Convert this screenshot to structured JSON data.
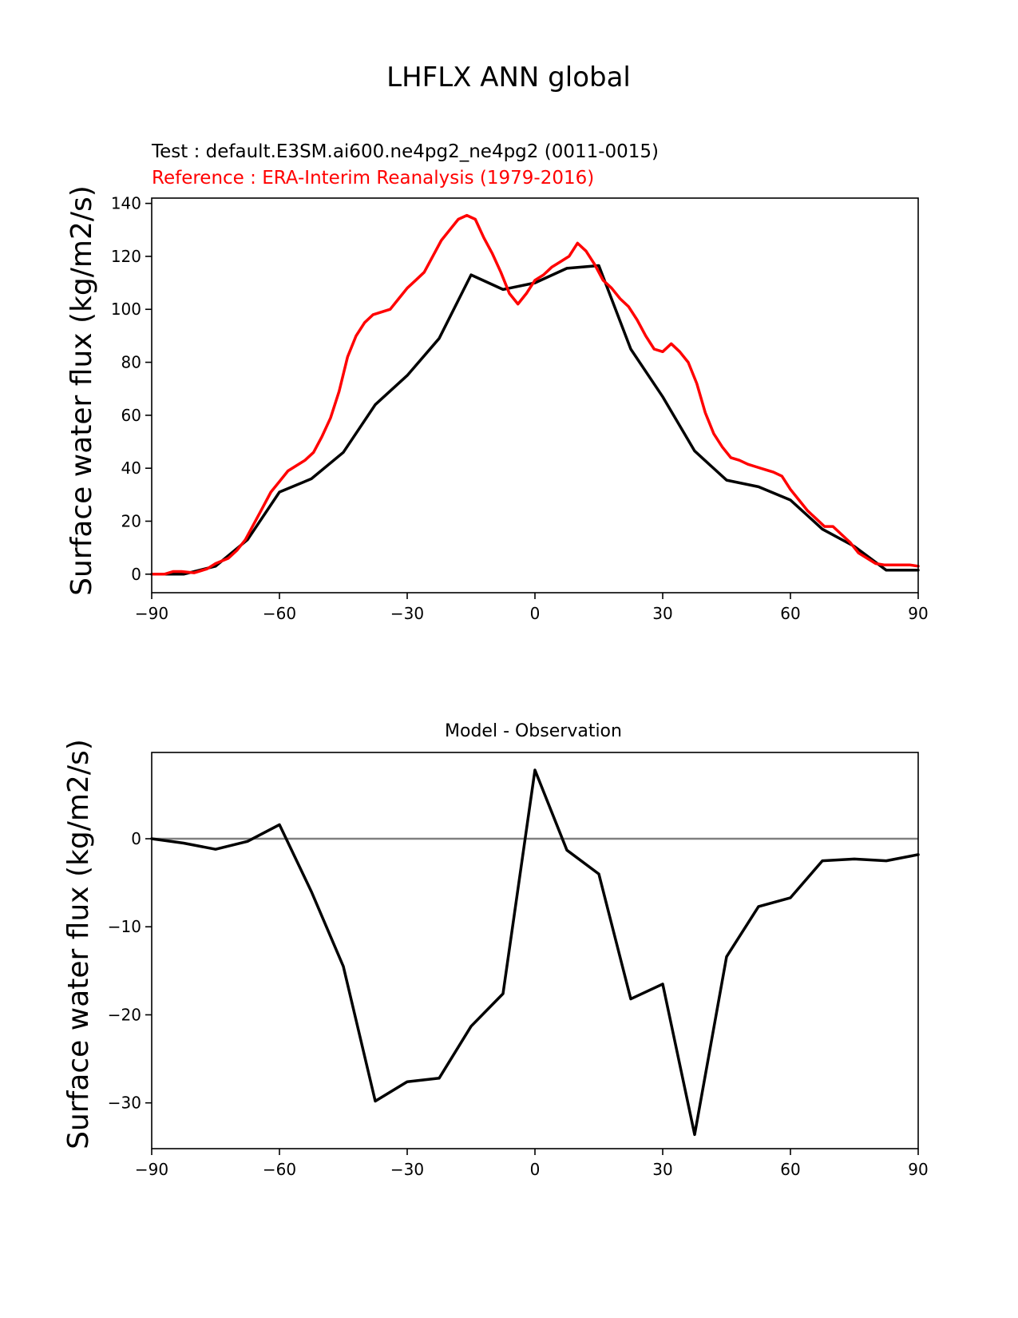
{
  "figure_title": "LHFLX ANN global",
  "chart_data": [
    {
      "type": "line",
      "name": "top",
      "test_label": "Test : default.E3SM.ai600.ne4pg2_ne4pg2 (0011-0015)",
      "reference_label": "Reference : ERA-Interim Reanalysis (1979-2016)",
      "xlabel": "",
      "ylabel": "Surface water flux (kg/m2/s)",
      "xlim": [
        -90,
        90
      ],
      "ylim": [
        -7,
        142
      ],
      "xticks": [
        -90,
        -60,
        -30,
        0,
        30,
        60,
        90
      ],
      "xtick_labels": [
        "−90",
        "−60",
        "−30",
        "0",
        "30",
        "60",
        "90"
      ],
      "yticks": [
        0,
        20,
        40,
        60,
        80,
        100,
        120,
        140
      ],
      "ytick_labels": [
        "0",
        "20",
        "40",
        "60",
        "80",
        "100",
        "120",
        "140"
      ],
      "series": [
        {
          "name": "Test",
          "color": "#000000",
          "x": [
            -90,
            -82.5,
            -75,
            -67.5,
            -60,
            -52.5,
            -45,
            -37.5,
            -30,
            -22.5,
            -15,
            -7.5,
            0,
            7.5,
            15,
            22.5,
            30,
            37.5,
            45,
            52.5,
            60,
            67.5,
            75,
            82.5,
            90
          ],
          "y": [
            0,
            0,
            3,
            13,
            31,
            36,
            46,
            64,
            75,
            89,
            113,
            107.5,
            110,
            115.5,
            116.5,
            85,
            67,
            46.5,
            35.5,
            33,
            28,
            17,
            10.5,
            1.5,
            1.5
          ]
        },
        {
          "name": "Reference",
          "color": "#ff0000",
          "x": [
            -90,
            -87,
            -85,
            -83,
            -80,
            -77,
            -75,
            -72,
            -70,
            -68,
            -66,
            -64,
            -62,
            -60,
            -58,
            -56,
            -54,
            -52,
            -50,
            -48,
            -46,
            -44,
            -42,
            -40,
            -38,
            -36,
            -34,
            -32,
            -30,
            -28,
            -26,
            -24,
            -22,
            -20,
            -18,
            -16,
            -14,
            -12,
            -10,
            -8,
            -6,
            -4,
            -2,
            0,
            2,
            4,
            6,
            8,
            10,
            12,
            14,
            16,
            18,
            20,
            22,
            24,
            26,
            28,
            30,
            32,
            34,
            36,
            38,
            40,
            42,
            44,
            46,
            48,
            50,
            52,
            54,
            56,
            58,
            60,
            62,
            64,
            66,
            68,
            70,
            72,
            74,
            76,
            78,
            80,
            82,
            84,
            86,
            88,
            90
          ],
          "y": [
            0,
            0,
            1,
            1,
            0.5,
            2,
            4,
            6,
            9,
            13,
            19,
            25,
            31,
            35,
            39,
            41,
            43,
            46,
            52,
            59,
            69,
            82,
            90,
            95,
            98,
            99,
            100,
            104,
            108,
            111,
            114,
            120,
            126,
            130,
            134,
            135.5,
            134,
            127,
            121,
            114,
            106,
            102,
            106,
            111,
            113,
            116,
            118,
            120,
            125,
            122,
            117,
            111,
            108,
            104,
            101,
            96,
            90,
            85,
            84,
            87,
            84,
            80,
            72,
            61,
            53,
            48,
            44,
            43,
            41.5,
            40.5,
            39.5,
            38.5,
            37,
            32,
            28,
            24,
            21,
            18,
            18,
            15,
            12,
            8,
            6,
            4,
            3.5,
            3.5,
            3.5,
            3.5,
            3
          ]
        }
      ]
    },
    {
      "type": "line",
      "name": "bottom",
      "title": "Model - Observation",
      "xlabel": "",
      "ylabel": "Surface water flux (kg/m2/s)",
      "xlim": [
        -90,
        90
      ],
      "ylim": [
        -35.2,
        9.8
      ],
      "xticks": [
        -90,
        -60,
        -30,
        0,
        30,
        60,
        90
      ],
      "xtick_labels": [
        "−90",
        "−60",
        "−30",
        "0",
        "30",
        "60",
        "90"
      ],
      "yticks": [
        0,
        -10,
        -20,
        -30
      ],
      "ytick_labels": [
        "0",
        "−10",
        "−20",
        "−30"
      ],
      "zero_line_color": "#808080",
      "series": [
        {
          "name": "Model - Observation",
          "color": "#000000",
          "x": [
            -90,
            -82.5,
            -75,
            -67.5,
            -60,
            -52.5,
            -45,
            -37.5,
            -30,
            -22.5,
            -15,
            -7.5,
            0,
            7.5,
            15,
            22.5,
            30,
            37.5,
            45,
            52.5,
            60,
            67.5,
            75,
            82.5,
            90
          ],
          "y": [
            0,
            -0.5,
            -1.2,
            -0.3,
            1.6,
            -6,
            -14.5,
            -29.8,
            -27.6,
            -27.2,
            -21.3,
            -17.6,
            7.8,
            -1.3,
            -4,
            -18.2,
            -16.5,
            -33.6,
            -13.4,
            -7.7,
            -6.7,
            -2.5,
            -2.3,
            -2.5,
            -1.8
          ]
        }
      ]
    }
  ]
}
